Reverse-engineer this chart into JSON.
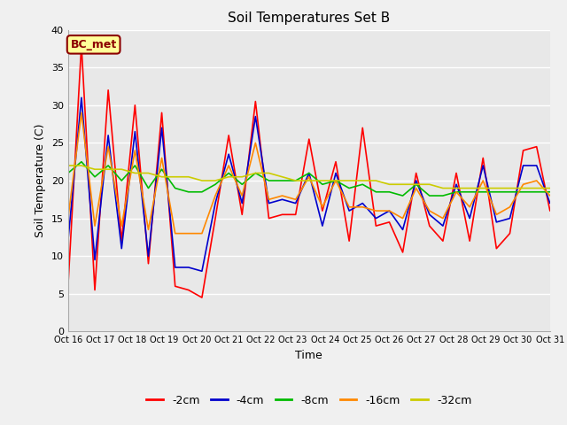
{
  "title": "Soil Temperatures Set B",
  "xlabel": "Time",
  "ylabel": "Soil Temperature (C)",
  "ylim": [
    0,
    40
  ],
  "yticks": [
    0,
    5,
    10,
    15,
    20,
    25,
    30,
    35,
    40
  ],
  "annotation_text": "BC_met",
  "annotation_color": "#8B0000",
  "annotation_bg": "#FFFF99",
  "fig_bg": "#F0F0F0",
  "plot_bg": "#E8E8E8",
  "line_colors": [
    "#FF0000",
    "#0000CC",
    "#00BB00",
    "#FF8800",
    "#CCCC00"
  ],
  "line_labels": [
    "-2cm",
    "-4cm",
    "-8cm",
    "-16cm",
    "-32cm"
  ],
  "line_width": 1.2,
  "xtick_labels": [
    "Oct 16",
    "Oct 17",
    "Oct 18",
    "Oct 19",
    "Oct 20",
    "Oct 21",
    "Oct 22",
    "Oct 23",
    "Oct 24",
    "Oct 25",
    "Oct 26",
    "Oct 27",
    "Oct 28",
    "Oct 29",
    "Oct 30",
    "Oct 31"
  ],
  "series_2cm": [
    6,
    38,
    5.5,
    32,
    12,
    30,
    9,
    29,
    6,
    5.5,
    4.5,
    15,
    26,
    15.5,
    30.5,
    15,
    15.5,
    15.5,
    25.5,
    16,
    22.5,
    12,
    27,
    14,
    14.5,
    10.5,
    21,
    14,
    12,
    21,
    12,
    23,
    11,
    13,
    24,
    24.5,
    16
  ],
  "series_4cm": [
    12,
    31,
    9.5,
    26,
    11,
    26.5,
    10,
    27,
    8.5,
    8.5,
    8,
    17,
    23.5,
    17,
    28.5,
    17,
    17.5,
    17,
    21,
    14,
    21,
    16,
    17,
    15,
    16,
    13.5,
    20,
    15.5,
    14,
    19.5,
    15,
    22,
    14.5,
    15,
    22,
    22,
    17
  ],
  "series_8cm": [
    21,
    22.5,
    20.5,
    22,
    20,
    22,
    19,
    21.5,
    19,
    18.5,
    18.5,
    19.5,
    21,
    19.5,
    21,
    20,
    20,
    20,
    21,
    19.5,
    20,
    19,
    19.5,
    18.5,
    18.5,
    18,
    19.5,
    18,
    18,
    18.5,
    18.5,
    18.5,
    18.5,
    18.5,
    18.5,
    18.5,
    18.5
  ],
  "series_16cm": [
    15,
    29,
    14,
    24.5,
    14,
    24,
    13.5,
    23,
    13,
    13,
    13,
    18,
    22,
    18,
    25,
    17.5,
    18,
    17.5,
    20.5,
    16.5,
    20,
    16.5,
    16.5,
    16,
    16,
    15,
    19,
    16,
    15,
    18.5,
    16.5,
    20,
    15.5,
    16.5,
    19.5,
    20,
    18
  ],
  "series_32cm": [
    22,
    22,
    21.5,
    21.5,
    21.5,
    21,
    21,
    20.5,
    20.5,
    20.5,
    20,
    20,
    20.5,
    20.5,
    21,
    21,
    20.5,
    20,
    20,
    20,
    20,
    20,
    20,
    20,
    19.5,
    19.5,
    19.5,
    19.5,
    19,
    19,
    19,
    19,
    19,
    19,
    19,
    19,
    19
  ]
}
